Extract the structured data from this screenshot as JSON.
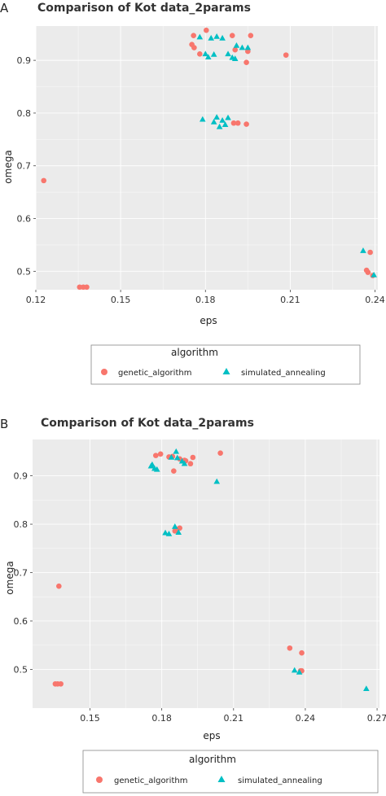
{
  "panels": [
    {
      "label": "A"
    },
    {
      "label": "B"
    }
  ],
  "colors": {
    "genetic_algorithm": "#F8766D",
    "simulated_annealing": "#00BFC4",
    "panel_bg": "#EBEBEB",
    "grid": "#FFFFFF"
  },
  "chart_data": [
    {
      "type": "scatter",
      "title": "Comparison of Kot data_2params",
      "xlabel": "eps",
      "ylabel": "omega",
      "xlim": [
        0.12,
        0.241
      ],
      "ylim": [
        0.465,
        0.965
      ],
      "xticks": [
        0.12,
        0.15,
        0.18,
        0.21,
        0.24
      ],
      "xtick_labels": [
        "0.12",
        "0.15",
        "0.18",
        "0.21",
        "0.24"
      ],
      "yticks": [
        0.5,
        0.6,
        0.7,
        0.8,
        0.9
      ],
      "ytick_labels": [
        "0.5",
        "0.6",
        "0.7",
        "0.8",
        "0.9"
      ],
      "grid": true,
      "legend": {
        "title": "algorithm",
        "position": "bottom",
        "entries": [
          "genetic_algorithm",
          "simulated_annealing"
        ]
      },
      "series": [
        {
          "name": "genetic_algorithm",
          "marker": "circle",
          "points": [
            [
              0.1803,
              0.957
            ],
            [
              0.1758,
              0.947
            ],
            [
              0.1895,
              0.947
            ],
            [
              0.196,
              0.947
            ],
            [
              0.1752,
              0.93
            ],
            [
              0.176,
              0.924
            ],
            [
              0.1905,
              0.92
            ],
            [
              0.195,
              0.917
            ],
            [
              0.178,
              0.912
            ],
            [
              0.2085,
              0.91
            ],
            [
              0.1945,
              0.896
            ],
            [
              0.19,
              0.781
            ],
            [
              0.1915,
              0.781
            ],
            [
              0.1945,
              0.779
            ],
            [
              0.1228,
              0.672
            ],
            [
              0.1355,
              0.47
            ],
            [
              0.1368,
              0.47
            ],
            [
              0.138,
              0.47
            ],
            [
              0.2383,
              0.536
            ],
            [
              0.237,
              0.502
            ],
            [
              0.2375,
              0.498
            ],
            [
              0.2392,
              0.492
            ]
          ]
        },
        {
          "name": "simulated_annealing",
          "marker": "triangle",
          "points": [
            [
              0.178,
              0.944
            ],
            [
              0.182,
              0.942
            ],
            [
              0.184,
              0.945
            ],
            [
              0.186,
              0.942
            ],
            [
              0.191,
              0.928
            ],
            [
              0.193,
              0.924
            ],
            [
              0.195,
              0.924
            ],
            [
              0.188,
              0.912
            ],
            [
              0.1895,
              0.905
            ],
            [
              0.1905,
              0.903
            ],
            [
              0.18,
              0.912
            ],
            [
              0.181,
              0.906
            ],
            [
              0.183,
              0.911
            ],
            [
              0.179,
              0.788
            ],
            [
              0.184,
              0.792
            ],
            [
              0.186,
              0.786
            ],
            [
              0.188,
              0.791
            ],
            [
              0.187,
              0.778
            ],
            [
              0.185,
              0.774
            ],
            [
              0.183,
              0.783
            ],
            [
              0.2358,
              0.539
            ],
            [
              0.2396,
              0.493
            ]
          ]
        }
      ]
    },
    {
      "type": "scatter",
      "title": "Comparison of Kot data_2params",
      "xlabel": "eps",
      "ylabel": "omega",
      "xlim": [
        0.126,
        0.271
      ],
      "ylim": [
        0.42,
        0.975
      ],
      "xticks": [
        0.15,
        0.18,
        0.21,
        0.24,
        0.27
      ],
      "xtick_labels": [
        "0.15",
        "0.18",
        "0.21",
        "0.24",
        "0.27"
      ],
      "yticks": [
        0.5,
        0.6,
        0.7,
        0.8,
        0.9
      ],
      "ytick_labels": [
        "0.5",
        "0.6",
        "0.7",
        "0.8",
        "0.9"
      ],
      "grid": true,
      "legend": {
        "title": "algorithm",
        "position": "bottom",
        "entries": [
          "genetic_algorithm",
          "simulated_annealing"
        ]
      },
      "series": [
        {
          "name": "genetic_algorithm",
          "marker": "circle",
          "points": [
            [
              0.1775,
              0.942
            ],
            [
              0.1795,
              0.945
            ],
            [
              0.183,
              0.939
            ],
            [
              0.1845,
              0.94
            ],
            [
              0.1875,
              0.935
            ],
            [
              0.1895,
              0.932
            ],
            [
              0.193,
              0.938
            ],
            [
              0.2045,
              0.947
            ],
            [
              0.192,
              0.925
            ],
            [
              0.185,
              0.91
            ],
            [
              0.19,
              0.931
            ],
            [
              0.1875,
              0.792
            ],
            [
              0.186,
              0.79
            ],
            [
              0.1855,
              0.786
            ],
            [
              0.137,
              0.672
            ],
            [
              0.1355,
              0.47
            ],
            [
              0.1365,
              0.47
            ],
            [
              0.1378,
              0.47
            ],
            [
              0.2335,
              0.544
            ],
            [
              0.2385,
              0.534
            ],
            [
              0.238,
              0.497
            ],
            [
              0.2385,
              0.497
            ]
          ]
        },
        {
          "name": "simulated_annealing",
          "marker": "triangle",
          "points": [
            [
              0.1755,
              0.92
            ],
            [
              0.177,
              0.915
            ],
            [
              0.178,
              0.913
            ],
            [
              0.176,
              0.923
            ],
            [
              0.184,
              0.938
            ],
            [
              0.186,
              0.95
            ],
            [
              0.1865,
              0.937
            ],
            [
              0.1885,
              0.93
            ],
            [
              0.1895,
              0.925
            ],
            [
              0.203,
              0.888
            ],
            [
              0.1815,
              0.782
            ],
            [
              0.183,
              0.78
            ],
            [
              0.1855,
              0.795
            ],
            [
              0.187,
              0.783
            ],
            [
              0.2355,
              0.498
            ],
            [
              0.2375,
              0.494
            ],
            [
              0.2655,
              0.46
            ]
          ]
        }
      ]
    }
  ]
}
